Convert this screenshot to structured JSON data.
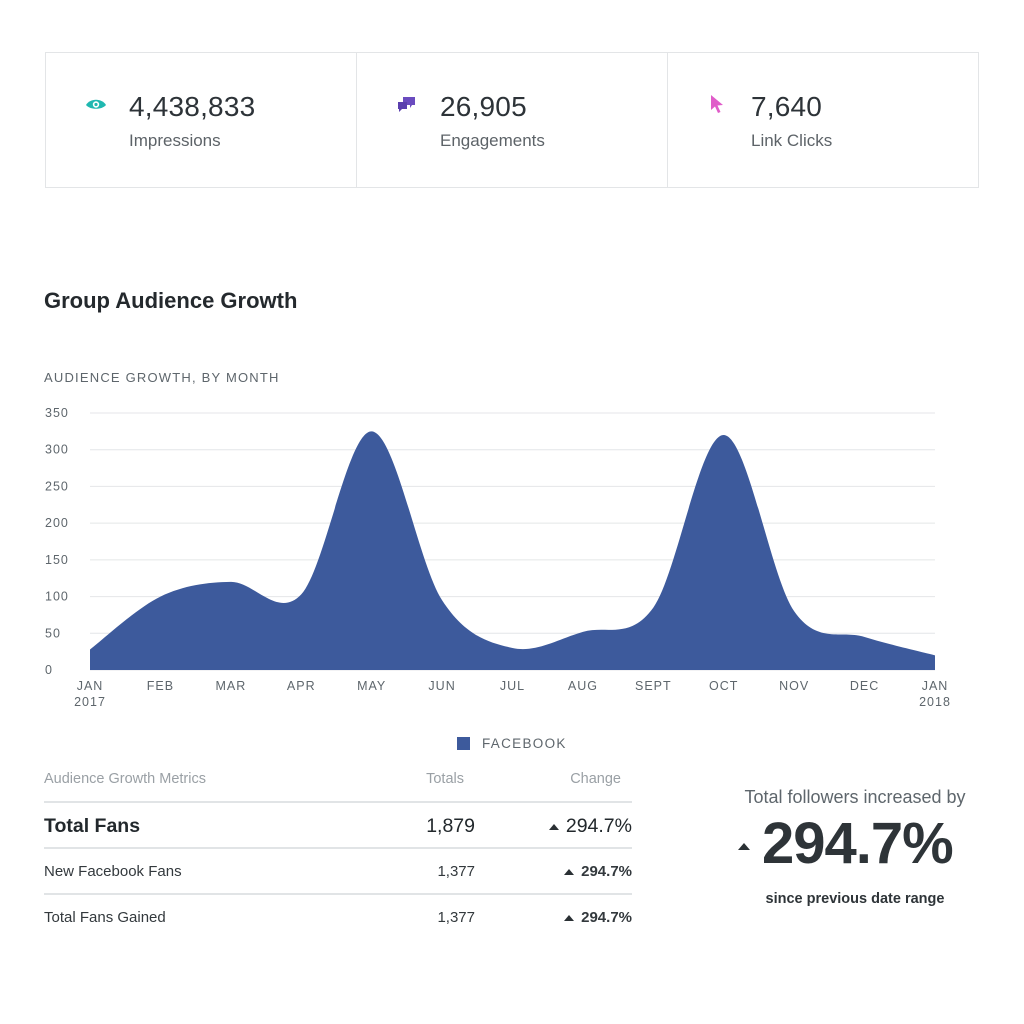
{
  "stats": [
    {
      "value": "4,438,833",
      "label": "Impressions",
      "icon": "eye-icon",
      "color": "#1fb8b0"
    },
    {
      "value": "26,905",
      "label": "Engagements",
      "icon": "chat-icon",
      "color": "#6a4bbf"
    },
    {
      "value": "7,640",
      "label": "Link Clicks",
      "icon": "cursor-icon",
      "color": "#e05cc9"
    }
  ],
  "section_title": "Group Audience Growth",
  "chart_subtitle": "AUDIENCE GROWTH, BY MONTH",
  "chart_data": {
    "type": "area",
    "title": "AUDIENCE GROWTH, BY MONTH",
    "categories": [
      "JAN 2017",
      "FEB",
      "MAR",
      "APR",
      "MAY",
      "JUN",
      "JUL",
      "AUG",
      "SEPT",
      "OCT",
      "NOV",
      "DEC",
      "JAN 2018"
    ],
    "series": [
      {
        "name": "FACEBOOK",
        "values": [
          28,
          100,
          120,
          103,
          325,
          95,
          30,
          52,
          85,
          320,
          80,
          45,
          20
        ],
        "color": "#3d5a9c"
      }
    ],
    "ylim": [
      0,
      350
    ],
    "yticks": [
      0,
      50,
      100,
      150,
      200,
      250,
      300,
      350
    ],
    "grid": true,
    "legend": "bottom-center"
  },
  "metrics": {
    "headers": [
      "Audience Growth Metrics",
      "Totals",
      "Change"
    ],
    "rows": [
      {
        "name": "Total Fans",
        "total": "1,879",
        "change": "294.7%"
      },
      {
        "name": "New Facebook Fans",
        "total": "1,377",
        "change": "294.7%"
      },
      {
        "name": "Total Fans Gained",
        "total": "1,377",
        "change": "294.7%"
      }
    ]
  },
  "summary": {
    "label": "Total followers increased by",
    "value": "294.7%",
    "note": "since previous date range"
  }
}
